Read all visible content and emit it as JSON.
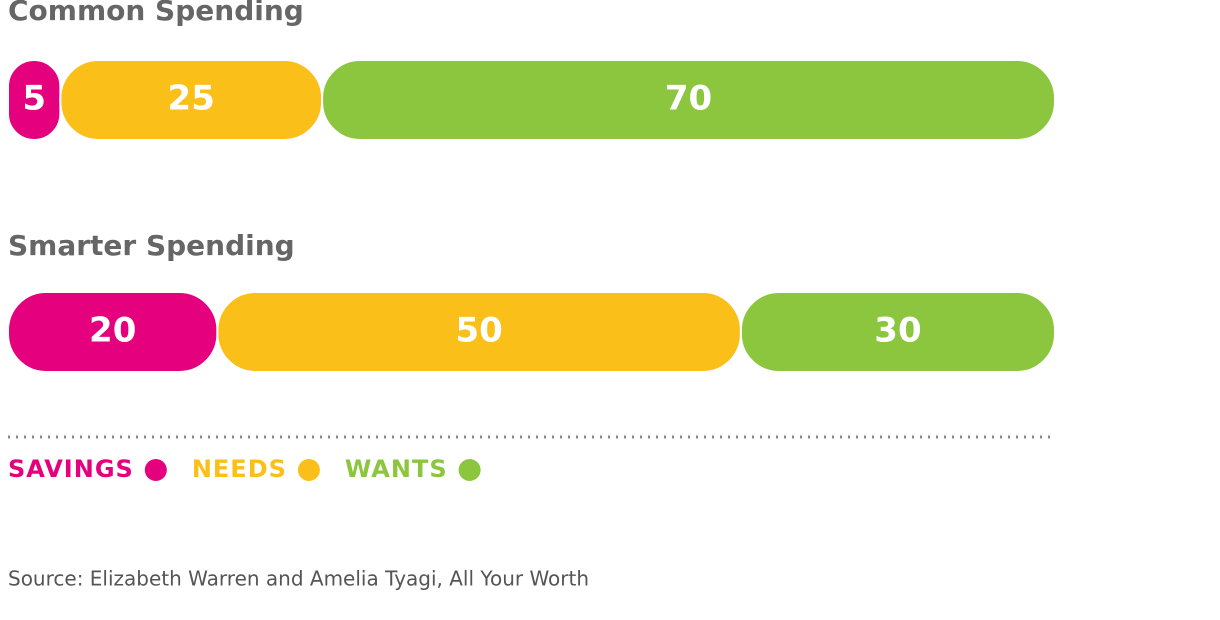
{
  "chart_data": {
    "type": "bar",
    "orientation": "horizontal",
    "stacked": true,
    "categories": [
      "Common Spending",
      "Smarter Spending"
    ],
    "series": [
      {
        "name": "SAVINGS",
        "color": "#e5007d",
        "values": [
          5,
          20
        ]
      },
      {
        "name": "NEEDS",
        "color": "#fbbf1a",
        "values": [
          25,
          50
        ]
      },
      {
        "name": "WANTS",
        "color": "#8cc63f",
        "values": [
          70,
          30
        ]
      }
    ],
    "xlim": [
      0,
      100
    ],
    "source": "Source: Elizabeth Warren and Amelia Tyagi, All Your Worth"
  }
}
